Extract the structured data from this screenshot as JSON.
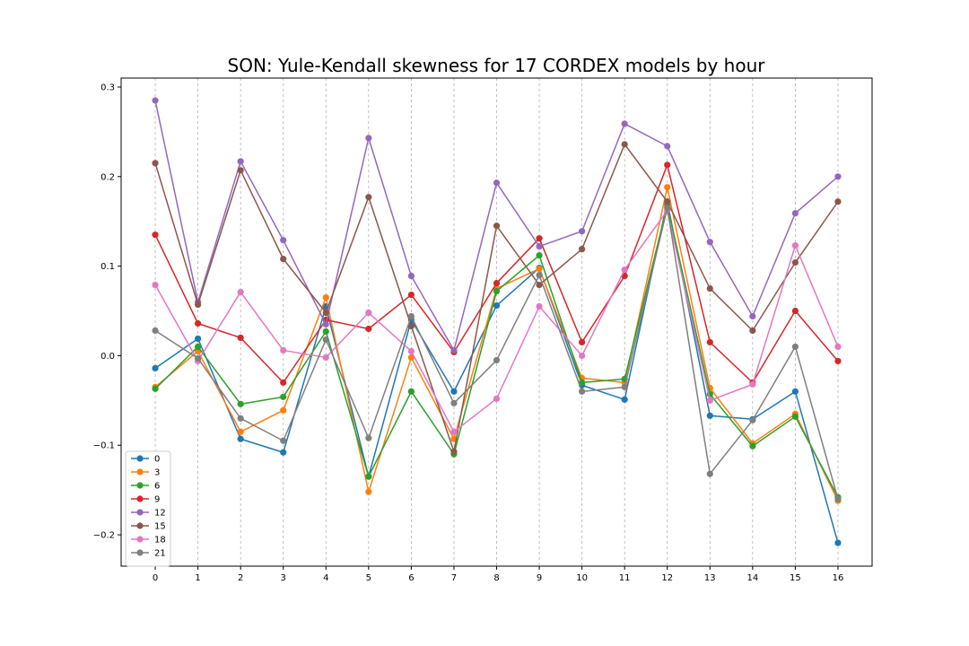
{
  "chart_data": {
    "type": "line",
    "title": "SON: Yule-Kendall skewness for 17 CORDEX models by hour",
    "xlabel": "",
    "ylabel": "",
    "x": [
      0,
      1,
      2,
      3,
      4,
      5,
      6,
      7,
      8,
      9,
      10,
      11,
      12,
      13,
      14,
      15,
      16
    ],
    "xlim": [
      -0.8,
      16.8
    ],
    "ylim": [
      -0.235,
      0.31
    ],
    "yticks": [
      -0.2,
      -0.1,
      0.0,
      0.1,
      0.2,
      0.3
    ],
    "ytick_labels": [
      "−0.2",
      "−0.1",
      "0.0",
      "0.1",
      "0.2",
      "0.3"
    ],
    "grid": "x-dashed",
    "legend_position": "lower left",
    "series": [
      {
        "name": "0",
        "color": "#1f77b4",
        "values": [
          -0.014,
          0.019,
          -0.093,
          -0.108,
          0.055,
          -0.135,
          0.04,
          -0.04,
          0.056,
          0.098,
          -0.033,
          -0.049,
          0.172,
          -0.067,
          -0.071,
          -0.04,
          -0.209
        ]
      },
      {
        "name": "3",
        "color": "#ff7f0e",
        "values": [
          -0.035,
          0.005,
          -0.085,
          -0.061,
          0.065,
          -0.152,
          -0.002,
          -0.093,
          0.075,
          0.097,
          -0.025,
          -0.03,
          0.188,
          -0.036,
          -0.098,
          -0.065,
          -0.162
        ]
      },
      {
        "name": "6",
        "color": "#2ca02c",
        "values": [
          -0.037,
          0.01,
          -0.054,
          -0.046,
          0.027,
          -0.135,
          -0.04,
          -0.11,
          0.072,
          0.112,
          -0.03,
          -0.026,
          0.168,
          -0.043,
          -0.101,
          -0.068,
          -0.158
        ]
      },
      {
        "name": "9",
        "color": "#d62728",
        "values": [
          0.135,
          0.036,
          0.02,
          -0.03,
          0.04,
          0.03,
          0.068,
          0.004,
          0.081,
          0.131,
          0.015,
          0.089,
          0.213,
          0.015,
          -0.03,
          0.05,
          -0.006
        ]
      },
      {
        "name": "12",
        "color": "#9467bd",
        "values": [
          0.285,
          0.06,
          0.217,
          0.129,
          0.035,
          0.243,
          0.089,
          0.006,
          0.193,
          0.122,
          0.139,
          0.259,
          0.234,
          0.127,
          0.044,
          0.159,
          0.2
        ]
      },
      {
        "name": "15",
        "color": "#8c564b",
        "values": [
          0.215,
          0.057,
          0.207,
          0.108,
          0.048,
          0.177,
          0.033,
          -0.107,
          0.145,
          0.079,
          0.119,
          0.236,
          0.172,
          0.075,
          0.028,
          0.104,
          0.172
        ]
      },
      {
        "name": "18",
        "color": "#e377c2",
        "values": [
          0.079,
          -0.006,
          0.071,
          0.006,
          -0.002,
          0.048,
          0.005,
          -0.085,
          -0.048,
          0.055,
          0.0,
          0.096,
          0.162,
          -0.05,
          -0.032,
          0.123,
          0.01
        ]
      },
      {
        "name": "21",
        "color": "#7f7f7f",
        "values": [
          0.028,
          -0.003,
          -0.07,
          -0.095,
          0.018,
          -0.092,
          0.044,
          -0.053,
          -0.005,
          0.09,
          -0.04,
          -0.035,
          0.165,
          -0.132,
          -0.072,
          0.01,
          -0.16
        ]
      }
    ]
  }
}
